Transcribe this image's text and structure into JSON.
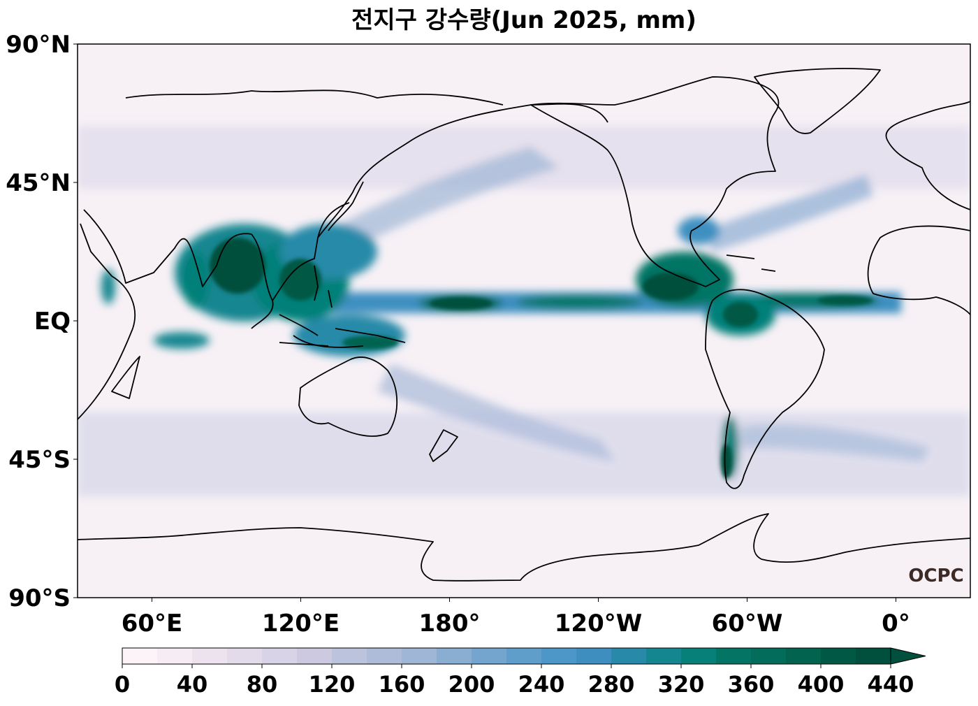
{
  "title": "전지구 강수량(Jun 2025, mm)",
  "logo": "OCPC",
  "map": {
    "projection": "PlateCarree",
    "central_longitude": 180,
    "lon_range": [
      30,
      390
    ],
    "lat_range": [
      -90,
      90
    ],
    "lat_ticks": [
      {
        "lat": 90,
        "label": "90°N"
      },
      {
        "lat": 45,
        "label": "45°N"
      },
      {
        "lat": 0,
        "label": "EQ"
      },
      {
        "lat": -45,
        "label": "45°S"
      },
      {
        "lat": -90,
        "label": "90°S"
      }
    ],
    "lon_ticks": [
      {
        "lon": 60,
        "label": "60°E"
      },
      {
        "lon": 120,
        "label": "120°E"
      },
      {
        "lon": 180,
        "label": "180°"
      },
      {
        "lon": 240,
        "label": "120°W"
      },
      {
        "lon": 300,
        "label": "60°W"
      },
      {
        "lon": 360,
        "label": "0°"
      }
    ],
    "colors": {
      "ocean_base": "#f7f1f6",
      "coast": "#000000"
    }
  },
  "colorbar": {
    "levels": [
      0,
      20,
      40,
      60,
      80,
      100,
      120,
      140,
      160,
      180,
      200,
      220,
      240,
      260,
      280,
      300,
      320,
      340,
      360,
      380,
      400,
      420,
      440
    ],
    "tick_labels": [
      "0",
      "40",
      "80",
      "120",
      "160",
      "200",
      "240",
      "280",
      "320",
      "360",
      "400",
      "440"
    ],
    "colors": [
      "#fcf4f9",
      "#f5ecf4",
      "#ede3ef",
      "#e3dbea",
      "#d8d3e6",
      "#ccc9e1",
      "#bcc3dd",
      "#aebcd9",
      "#9fb6d6",
      "#8aadd2",
      "#74a5cf",
      "#5f9ecb",
      "#4c97c7",
      "#3e8fc0",
      "#288aa8",
      "#138690",
      "#068079",
      "#047565",
      "#036c5a",
      "#02634f",
      "#015945",
      "#00503d"
    ],
    "extend": "max"
  }
}
